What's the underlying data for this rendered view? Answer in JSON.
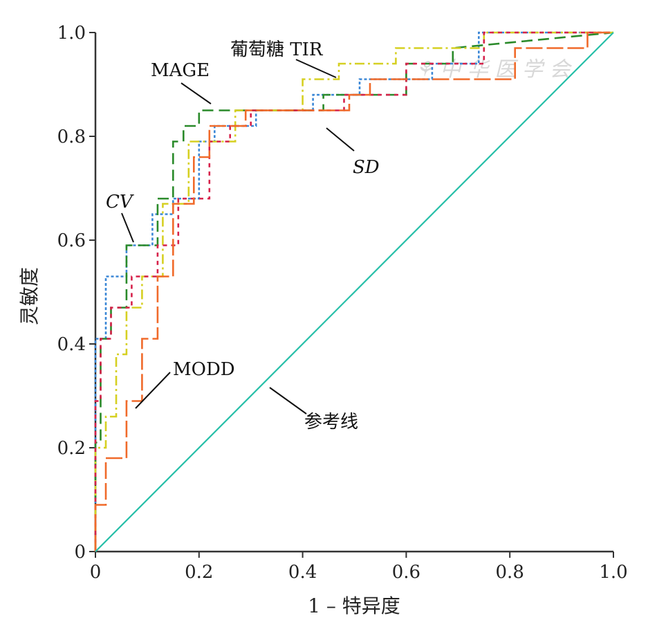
{
  "chart_data": {
    "type": "line",
    "title": "",
    "xlabel": "1 – 特异度",
    "ylabel": "灵敏度",
    "xlim": [
      0,
      1
    ],
    "ylim": [
      0,
      1
    ],
    "x_ticks": [
      "0",
      "0.2",
      "0.4",
      "0.6",
      "0.8",
      "1.0"
    ],
    "y_ticks": [
      "0",
      "0.2",
      "0.4",
      "0.6",
      "0.8",
      "1.0"
    ],
    "grid": false,
    "legend": "none",
    "series": [
      {
        "name": "CV",
        "color": "#3b87d6",
        "x": [
          0,
          0,
          0.02,
          0.02,
          0.06,
          0.06,
          0.11,
          0.11,
          0.15,
          0.15,
          0.2,
          0.2,
          0.23,
          0.23,
          0.31,
          0.31,
          0.42,
          0.42,
          0.51,
          0.51,
          0.65,
          0.65,
          0.74,
          0.74,
          1.0
        ],
        "y": [
          0,
          0.41,
          0.41,
          0.53,
          0.53,
          0.59,
          0.59,
          0.65,
          0.65,
          0.68,
          0.68,
          0.79,
          0.79,
          0.82,
          0.82,
          0.85,
          0.85,
          0.88,
          0.88,
          0.91,
          0.91,
          0.94,
          0.94,
          1.0,
          1.0
        ]
      },
      {
        "name": "MAGE",
        "color": "#2a8a2a",
        "x": [
          0,
          0,
          0.01,
          0.01,
          0.03,
          0.03,
          0.06,
          0.06,
          0.12,
          0.12,
          0.15,
          0.15,
          0.17,
          0.17,
          0.2,
          0.2,
          0.44,
          0.44,
          0.6,
          0.6,
          0.69,
          0.69,
          1.0
        ],
        "y": [
          0,
          0.21,
          0.21,
          0.41,
          0.41,
          0.47,
          0.47,
          0.59,
          0.59,
          0.68,
          0.68,
          0.79,
          0.79,
          0.82,
          0.82,
          0.85,
          0.85,
          0.88,
          0.88,
          0.94,
          0.94,
          0.97,
          1.0
        ]
      },
      {
        "name": "葡萄糖 TIR",
        "color": "#d6d022",
        "x": [
          0,
          0,
          0.02,
          0.02,
          0.04,
          0.04,
          0.06,
          0.06,
          0.09,
          0.09,
          0.13,
          0.13,
          0.18,
          0.18,
          0.27,
          0.27,
          0.4,
          0.4,
          0.47,
          0.47,
          0.58,
          0.58,
          0.75,
          0.75,
          1.0
        ],
        "y": [
          0,
          0.2,
          0.2,
          0.26,
          0.26,
          0.38,
          0.38,
          0.47,
          0.47,
          0.53,
          0.53,
          0.67,
          0.67,
          0.79,
          0.79,
          0.85,
          0.85,
          0.91,
          0.91,
          0.94,
          0.94,
          0.97,
          0.97,
          1.0,
          1.0
        ]
      },
      {
        "name": "SD",
        "color": "#d6214a",
        "x": [
          0,
          0,
          0.01,
          0.01,
          0.03,
          0.03,
          0.07,
          0.07,
          0.12,
          0.12,
          0.16,
          0.16,
          0.22,
          0.22,
          0.26,
          0.26,
          0.3,
          0.3,
          0.48,
          0.48,
          0.6,
          0.6,
          0.75,
          0.75,
          1.0
        ],
        "y": [
          0,
          0.29,
          0.29,
          0.41,
          0.41,
          0.47,
          0.47,
          0.53,
          0.53,
          0.59,
          0.59,
          0.68,
          0.68,
          0.79,
          0.79,
          0.82,
          0.82,
          0.85,
          0.85,
          0.88,
          0.88,
          0.94,
          0.94,
          1.0,
          1.0
        ]
      },
      {
        "name": "MODD",
        "color": "#f06a2a",
        "x": [
          0,
          0,
          0.02,
          0.02,
          0.06,
          0.06,
          0.09,
          0.09,
          0.12,
          0.12,
          0.15,
          0.15,
          0.19,
          0.19,
          0.22,
          0.22,
          0.29,
          0.29,
          0.49,
          0.49,
          0.53,
          0.53,
          0.81,
          0.81,
          0.95,
          0.95,
          1.0
        ],
        "y": [
          0,
          0.09,
          0.09,
          0.18,
          0.18,
          0.29,
          0.29,
          0.41,
          0.41,
          0.53,
          0.53,
          0.67,
          0.67,
          0.76,
          0.76,
          0.82,
          0.82,
          0.85,
          0.85,
          0.88,
          0.88,
          0.91,
          0.91,
          0.97,
          0.97,
          1.0,
          1.0
        ]
      },
      {
        "name": "参考线",
        "color": "#26bfa8",
        "x": [
          0,
          1
        ],
        "y": [
          0,
          1
        ]
      }
    ],
    "annotations": [
      {
        "text": "葡萄糖 TIR",
        "italic": false
      },
      {
        "text": "MAGE",
        "italic": false
      },
      {
        "text": "CV",
        "italic": true
      },
      {
        "text": "SD",
        "italic": true
      },
      {
        "text": "MODD",
        "italic": false
      },
      {
        "text": "参考线",
        "italic": false
      }
    ]
  }
}
